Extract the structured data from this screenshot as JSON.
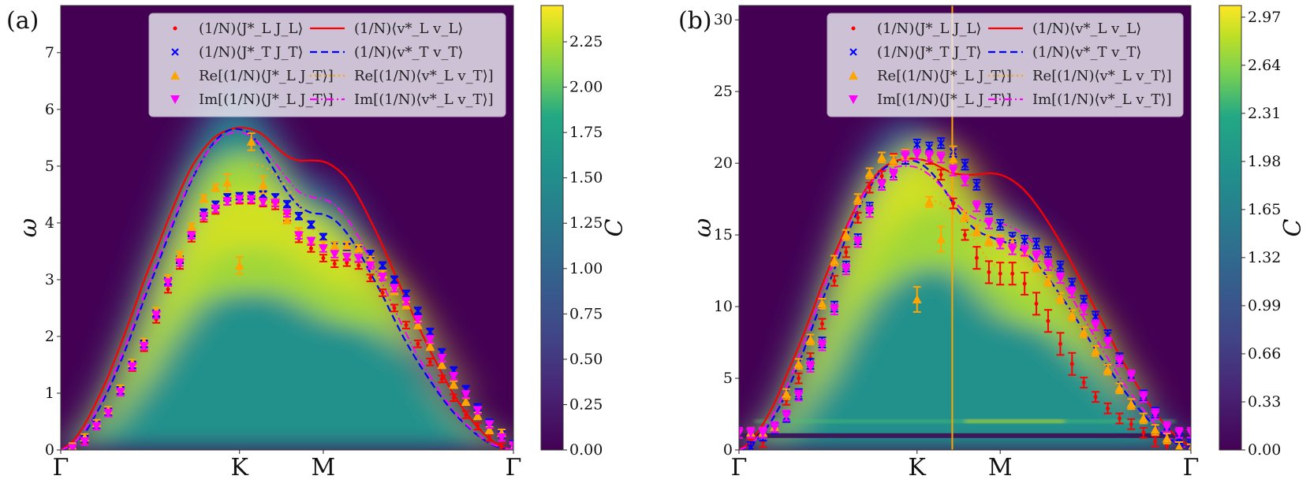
{
  "chart_data": [
    {
      "type": "heatmap",
      "panel_label": "(a)",
      "xlabel": "",
      "ylabel": "ω",
      "ylim": [
        0,
        7.83
      ],
      "yticks": [
        "0",
        "1",
        "2",
        "3",
        "4",
        "5",
        "6",
        "7"
      ],
      "ytick_values": [
        0,
        1,
        2,
        3,
        4,
        5,
        6,
        7
      ],
      "xticks": [
        "Γ",
        "K",
        "M",
        "Γ"
      ],
      "xtick_positions": [
        0,
        0.395,
        0.58,
        1
      ],
      "colorbar": {
        "label": "C",
        "range": [
          0,
          2.45
        ],
        "ticks": [
          "0.00",
          "0.25",
          "0.50",
          "0.75",
          "1.00",
          "1.25",
          "1.50",
          "1.75",
          "2.00",
          "2.25"
        ],
        "tick_values": [
          0,
          0.25,
          0.5,
          0.75,
          1.0,
          1.25,
          1.5,
          1.75,
          2.0,
          2.25
        ],
        "colormap": "viridis"
      },
      "legend": {
        "placement": "top-center",
        "entries": [
          {
            "label": "(1/N)⟨J*_L J_L⟩",
            "marker": "dot",
            "color": "#ff0000"
          },
          {
            "label": "(1/N)⟨J*_T J_T⟩",
            "marker": "x",
            "color": "#0000ff"
          },
          {
            "label": "Re[(1/N)⟨J*_L J_T⟩]",
            "marker": "triangle-up",
            "color": "#ffa500"
          },
          {
            "label": "Im[(1/N)⟨J*_L J_T⟩]",
            "marker": "triangle-down",
            "color": "#ff00ff"
          },
          {
            "label": "(1/N)⟨v*_L v_L⟩",
            "line": "solid",
            "color": "#ff0000"
          },
          {
            "label": "(1/N)⟨v*_T v_T⟩",
            "line": "dashed",
            "color": "#0000ff"
          },
          {
            "label": "Re[(1/N)⟨v*_L v_T⟩]",
            "line": "dotted",
            "color": "#ffa500"
          },
          {
            "label": "Im[(1/N)⟨v*_L v_T⟩]",
            "line": "dashdot",
            "color": "#ff00ff"
          }
        ]
      },
      "heat_ridge": {
        "peak_value": 2.3,
        "center_curve": "follows markers"
      },
      "q": [
        0,
        0.026,
        0.053,
        0.079,
        0.105,
        0.132,
        0.158,
        0.184,
        0.211,
        0.237,
        0.263,
        0.289,
        0.316,
        0.342,
        0.368,
        0.395,
        0.421,
        0.447,
        0.474,
        0.5,
        0.526,
        0.553,
        0.58,
        0.605,
        0.632,
        0.658,
        0.684,
        0.711,
        0.737,
        0.763,
        0.789,
        0.816,
        0.842,
        0.868,
        0.895,
        0.921,
        0.947,
        0.974,
        1.0
      ],
      "series": [
        {
          "name": "JL",
          "kind": "errorbar",
          "color": "#ff0000",
          "values": [
            0,
            0.04,
            0.18,
            0.42,
            0.65,
            1.02,
            1.45,
            1.8,
            2.3,
            2.83,
            3.25,
            3.73,
            4.08,
            4.22,
            4.38,
            4.4,
            4.4,
            4.35,
            4.3,
            4.1,
            3.72,
            3.55,
            3.38,
            3.28,
            3.3,
            3.25,
            3.03,
            2.77,
            2.5,
            2.2,
            1.87,
            1.55,
            1.25,
            0.92,
            0.62,
            0.42,
            0.22,
            0.06,
            0
          ]
        },
        {
          "name": "JT",
          "kind": "errorbar",
          "color": "#0000ff",
          "values": [
            0,
            0.05,
            0.2,
            0.45,
            0.68,
            1.05,
            1.5,
            1.87,
            2.4,
            2.97,
            3.35,
            3.82,
            4.18,
            4.32,
            4.45,
            4.47,
            4.48,
            4.5,
            4.45,
            4.33,
            4.12,
            3.97,
            3.75,
            3.6,
            3.58,
            3.55,
            3.45,
            3.25,
            3.0,
            2.75,
            2.45,
            2.08,
            1.72,
            1.4,
            1.07,
            0.75,
            0.48,
            0.28,
            0.1
          ]
        },
        {
          "name": "ReJLJT",
          "kind": "errorbar",
          "color": "#ffa500",
          "values": [
            0,
            0.06,
            0.22,
            0.47,
            0.7,
            1.08,
            1.53,
            1.9,
            2.45,
            3.02,
            3.43,
            3.93,
            4.43,
            4.62,
            4.71,
            3.25,
            5.43,
            4.67,
            4.36,
            4.05,
            3.85,
            3.68,
            3.62,
            3.6,
            3.6,
            3.55,
            3.35,
            3.1,
            2.8,
            2.55,
            2.2,
            1.82,
            1.5,
            1.15,
            0.85,
            0.6,
            0.35,
            0.3,
            0.05
          ]
        },
        {
          "name": "ImJLJT",
          "kind": "errorbar",
          "color": "#ff00ff",
          "values": [
            0,
            0.03,
            0.15,
            0.42,
            0.65,
            1.02,
            1.47,
            1.83,
            2.38,
            2.95,
            3.3,
            3.78,
            4.12,
            4.25,
            4.38,
            4.42,
            4.42,
            4.37,
            4.35,
            4.17,
            3.78,
            3.68,
            3.55,
            3.45,
            3.4,
            3.38,
            3.25,
            3.05,
            2.85,
            2.62,
            2.3,
            1.95,
            1.62,
            1.3,
            0.98,
            0.7,
            0.45,
            0.22,
            0.08
          ]
        },
        {
          "name": "vLvL",
          "kind": "line",
          "color": "#ff0000",
          "values": [
            0,
            0.15,
            0.45,
            0.85,
            1.3,
            1.85,
            2.4,
            2.98,
            3.52,
            4.05,
            4.55,
            4.98,
            5.3,
            5.52,
            5.63,
            5.68,
            5.65,
            5.55,
            5.35,
            5.18,
            5.1,
            5.1,
            5.08,
            4.98,
            4.78,
            4.45,
            4.05,
            3.6,
            3.12,
            2.65,
            2.2,
            1.75,
            1.35,
            0.98,
            0.66,
            0.4,
            0.2,
            0.06,
            0
          ]
        },
        {
          "name": "vTvT",
          "kind": "line",
          "color": "#0000ff",
          "values": [
            0,
            0.08,
            0.3,
            0.65,
            1.05,
            1.55,
            2.08,
            2.65,
            3.2,
            3.75,
            4.28,
            4.75,
            5.15,
            5.45,
            5.62,
            5.65,
            5.55,
            5.25,
            4.9,
            4.55,
            4.3,
            4.18,
            4.15,
            4.05,
            3.82,
            3.5,
            3.12,
            2.72,
            2.3,
            1.9,
            1.55,
            1.22,
            0.92,
            0.66,
            0.44,
            0.26,
            0.12,
            0.03,
            0
          ]
        },
        {
          "name": "RevLvT",
          "kind": "line",
          "color": "#ffa500",
          "range": [
            0.421,
            0.58
          ],
          "values_partial": {
            "q": [
              0.421,
              0.447,
              0.474,
              0.5,
              0.526,
              0.553,
              0.58
            ],
            "w": [
              5.03,
              5.0,
              4.85,
              4.62,
              4.32,
              3.9,
              3.88
            ]
          }
        },
        {
          "name": "ImvLvT",
          "kind": "line",
          "color": "#ff00ff",
          "values": [
            0,
            0.1,
            0.35,
            0.7,
            1.12,
            1.62,
            2.15,
            2.72,
            3.28,
            3.82,
            4.32,
            4.78,
            5.15,
            5.42,
            5.56,
            5.6,
            5.52,
            5.32,
            5.05,
            4.78,
            4.55,
            4.46,
            4.42,
            4.32,
            4.08,
            3.75,
            3.35,
            2.92,
            2.48,
            2.05,
            1.65,
            1.3,
            0.98,
            0.7,
            0.46,
            0.28,
            0.13,
            0.04,
            0
          ]
        }
      ]
    },
    {
      "type": "heatmap",
      "panel_label": "(b)",
      "xlabel": "",
      "ylabel": "ω",
      "ylim": [
        0,
        31
      ],
      "yticks": [
        "0",
        "5",
        "10",
        "15",
        "20",
        "25",
        "30"
      ],
      "ytick_values": [
        0,
        5,
        10,
        15,
        20,
        25,
        30
      ],
      "xticks": [
        "Γ",
        "K",
        "M",
        "Γ"
      ],
      "xtick_positions": [
        0,
        0.394,
        0.578,
        1
      ],
      "vertical_line": {
        "position": 0.472,
        "color": "#ffa500"
      },
      "horizontal_features": [
        {
          "omega": 2.0,
          "kind": "bright-band"
        },
        {
          "omega": 1.0,
          "kind": "dark-band"
        }
      ],
      "colorbar": {
        "label": "C",
        "range": [
          0,
          3.05
        ],
        "ticks": [
          "0.00",
          "0.33",
          "0.66",
          "0.99",
          "1.32",
          "1.65",
          "1.98",
          "2.31",
          "2.64",
          "2.97"
        ],
        "tick_values": [
          0,
          0.33,
          0.66,
          0.99,
          1.32,
          1.65,
          1.98,
          2.31,
          2.64,
          2.97
        ],
        "colormap": "viridis"
      },
      "legend": {
        "placement": "top-center",
        "entries": [
          {
            "label": "(1/N)⟨J*_L J_L⟩",
            "marker": "dot",
            "color": "#ff0000"
          },
          {
            "label": "(1/N)⟨J*_T J_T⟩",
            "marker": "x",
            "color": "#0000ff"
          },
          {
            "label": "Re[(1/N)⟨J*_L J_T⟩]",
            "marker": "triangle-up",
            "color": "#ffa500"
          },
          {
            "label": "Im[(1/N)⟨J*_L J_T⟩]",
            "marker": "triangle-down",
            "color": "#ff00ff"
          },
          {
            "label": "(1/N)⟨v*_L v_L⟩",
            "line": "solid",
            "color": "#ff0000"
          },
          {
            "label": "(1/N)⟨v*_T v_T⟩",
            "line": "dashed",
            "color": "#0000ff"
          },
          {
            "label": "Re[(1/N)⟨v*_L v_T⟩]",
            "line": "dotted",
            "color": "#ffa500"
          },
          {
            "label": "Im[(1/N)⟨v*_L v_T⟩]",
            "line": "dashdot",
            "color": "#ff00ff"
          }
        ]
      },
      "q": [
        0,
        0.026,
        0.053,
        0.079,
        0.105,
        0.132,
        0.158,
        0.184,
        0.211,
        0.237,
        0.263,
        0.289,
        0.316,
        0.342,
        0.368,
        0.394,
        0.421,
        0.447,
        0.474,
        0.5,
        0.526,
        0.553,
        0.578,
        0.605,
        0.632,
        0.658,
        0.684,
        0.711,
        0.737,
        0.763,
        0.789,
        0.816,
        0.842,
        0.868,
        0.895,
        0.921,
        0.947,
        0.974,
        1.0
      ],
      "series": [
        {
          "name": "JL",
          "kind": "errorbar",
          "color": "#ff0000",
          "values": [
            0,
            0.4,
            0.55,
            1.5,
            3.5,
            5.0,
            6.4,
            8.8,
            11.8,
            13.8,
            16.2,
            18.3,
            19.1,
            20.3,
            20.6,
            20.6,
            20.3,
            19.2,
            17.2,
            15.0,
            13.4,
            12.4,
            12.3,
            12.3,
            11.6,
            10.2,
            9.0,
            7.4,
            6.0,
            4.7,
            3.7,
            2.9,
            2.2,
            1.8,
            1.2,
            0.6,
            0.3,
            0.1,
            0
          ]
        },
        {
          "name": "JT",
          "kind": "errorbar",
          "color": "#0000ff",
          "values": [
            0,
            0.2,
            1.0,
            1.5,
            2.3,
            3.9,
            6.0,
            7.5,
            10.0,
            12.8,
            14.7,
            16.9,
            18.5,
            19.2,
            20.3,
            21.3,
            21.1,
            21.4,
            20.8,
            19.9,
            18.5,
            16.8,
            15.7,
            14.8,
            14.6,
            14.4,
            13.8,
            12.8,
            11.6,
            10.4,
            9.3,
            8.0,
            6.4,
            5.2,
            3.8,
            2.6,
            1.6,
            0.8,
            0.4
          ]
        },
        {
          "name": "ReJLJT",
          "kind": "errorbar",
          "color": "#ffa500",
          "values": [
            0,
            1.2,
            1.2,
            1.6,
            3.9,
            6.0,
            7.7,
            10.2,
            13.2,
            15.0,
            17.5,
            19.3,
            20.4,
            20.2,
            20.6,
            10.5,
            17.3,
            14.7,
            20.3,
            16.3,
            15.3,
            14.6,
            14.6,
            14.4,
            13.8,
            12.8,
            11.8,
            10.6,
            9.4,
            8.2,
            6.9,
            5.6,
            4.3,
            3.2,
            2.2,
            1.4,
            0.8,
            0.2,
            0.05
          ]
        },
        {
          "name": "ImJLJT",
          "kind": "errorbar",
          "color": "#ff00ff",
          "values": [
            1.2,
            1.2,
            1.2,
            1.6,
            2.4,
            3.8,
            5.8,
            7.3,
            9.8,
            12.6,
            14.5,
            16.6,
            18.5,
            19.2,
            20.5,
            20.6,
            20.5,
            20.4,
            19.5,
            18.8,
            17.0,
            15.8,
            14.4,
            14.0,
            13.9,
            13.5,
            12.9,
            12.0,
            11.0,
            9.8,
            8.7,
            7.5,
            6.2,
            5.2,
            3.7,
            2.5,
            1.6,
            1.2,
            1.2
          ]
        },
        {
          "name": "vLvL",
          "kind": "line",
          "color": "#ff0000",
          "values": [
            0,
            0.6,
            1.8,
            3.3,
            5.2,
            7.2,
            9.3,
            11.5,
            13.6,
            15.5,
            17.2,
            18.6,
            19.6,
            20.1,
            20.3,
            20.3,
            20.1,
            19.7,
            19.3,
            19.2,
            19.2,
            19.3,
            19.2,
            18.8,
            18.1,
            17.1,
            15.9,
            14.5,
            13.0,
            11.4,
            9.8,
            8.2,
            6.6,
            5.2,
            3.8,
            2.6,
            1.6,
            0.8,
            0.2
          ]
        },
        {
          "name": "vTvT",
          "kind": "line",
          "color": "#0000ff",
          "values": [
            0,
            0.3,
            1.2,
            2.4,
            4.0,
            6.0,
            8.2,
            10.4,
            12.6,
            14.8,
            16.7,
            18.3,
            19.5,
            20.0,
            20.2,
            20.1,
            19.5,
            18.5,
            17.2,
            16.1,
            15.3,
            14.9,
            14.6,
            14.3,
            13.8,
            13.0,
            12.0,
            10.8,
            9.6,
            8.3,
            7.0,
            5.8,
            4.6,
            3.5,
            2.5,
            1.6,
            0.9,
            0.4,
            0
          ]
        },
        {
          "name": "RevLvT",
          "kind": "line",
          "color": "#ffa500",
          "range": [
            0.421,
            0.578
          ],
          "values_partial": {
            "q": [
              0.421,
              0.447,
              0.474,
              0.5,
              0.526,
              0.553,
              0.578
            ],
            "w": [
              17.5,
              17.2,
              16.5,
              15.5,
              14.5,
              13.2,
              12.7
            ]
          }
        },
        {
          "name": "ImvLvT",
          "kind": "line",
          "color": "#ff00ff",
          "values": [
            0,
            0.4,
            1.4,
            2.7,
            4.4,
            6.5,
            8.7,
            11.0,
            13.2,
            15.3,
            17.1,
            18.5,
            19.4,
            19.7,
            19.8,
            19.7,
            19.2,
            18.4,
            17.4,
            16.6,
            16.1,
            15.9,
            15.8,
            15.5,
            15.0,
            14.2,
            13.2,
            12.0,
            10.6,
            9.2,
            7.8,
            6.4,
            5.1,
            3.9,
            2.8,
            1.8,
            1.0,
            0.4,
            0
          ]
        }
      ]
    }
  ]
}
